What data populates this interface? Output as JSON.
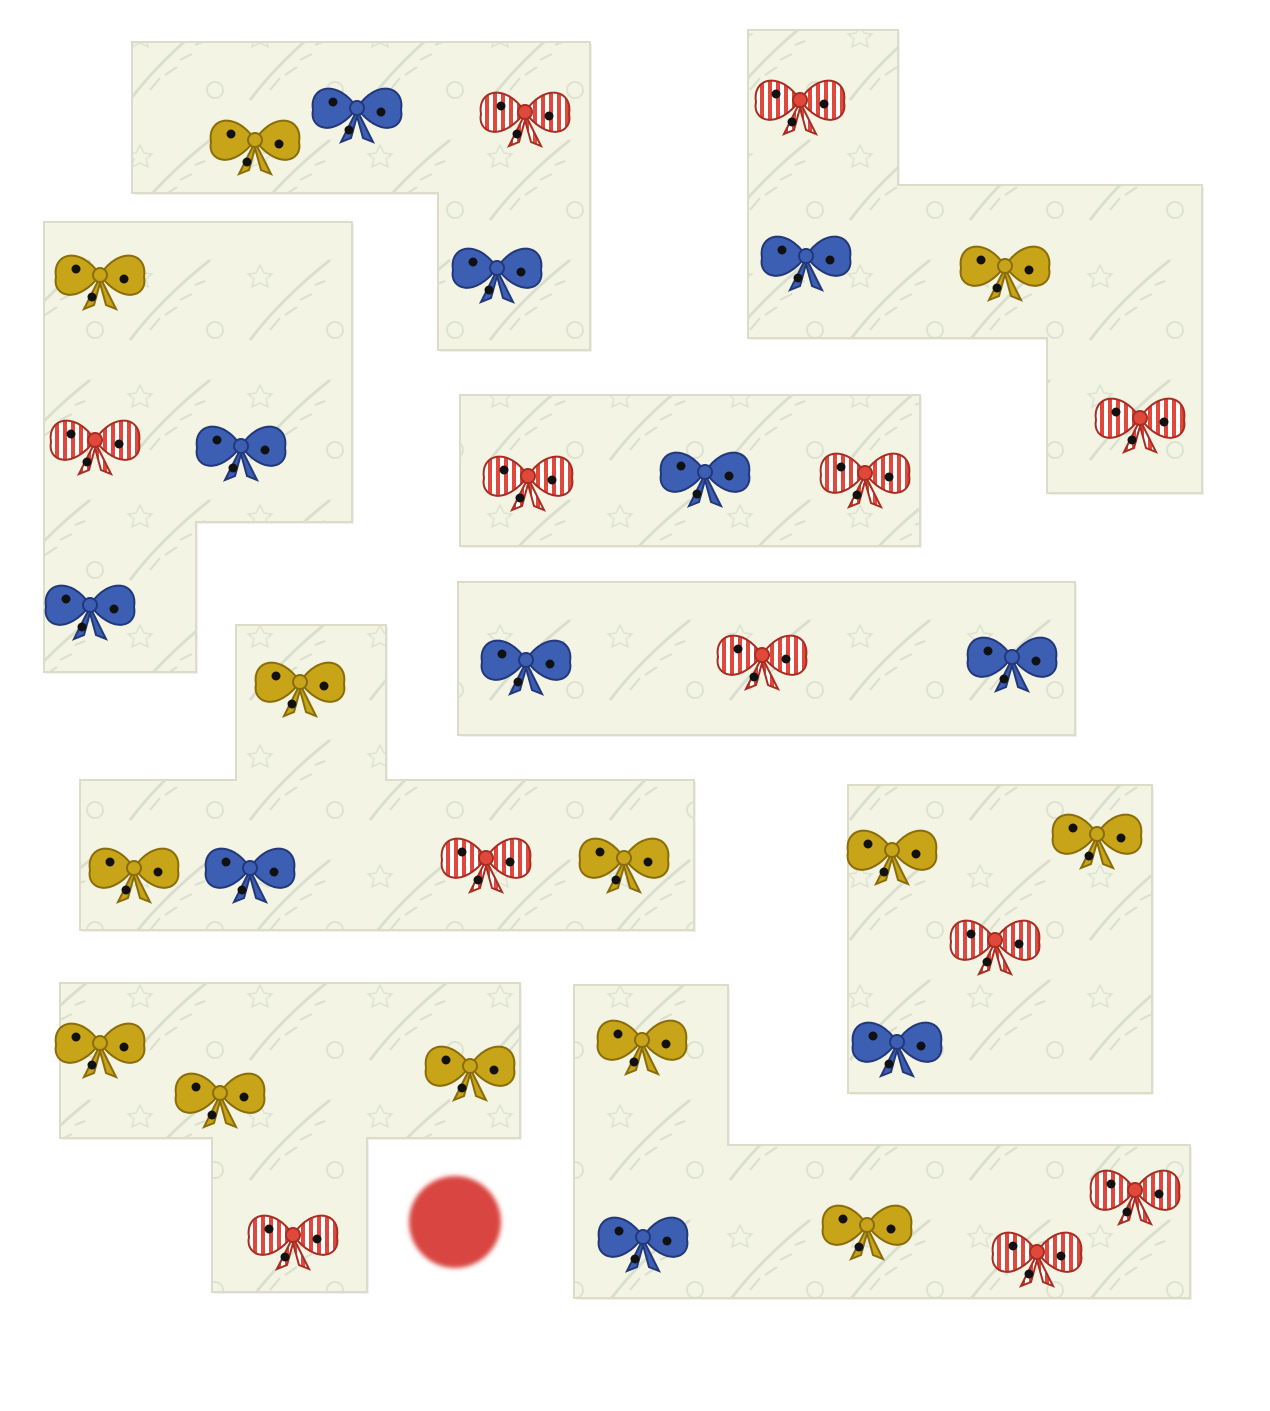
{
  "game": {
    "type": "polyomino-bow-puzzle",
    "background_color": "#ffffff",
    "card_color": "#f3f4e3",
    "marker": {
      "color": "#d94441",
      "kind": "red-dot"
    },
    "bow_colors": {
      "gold": "#c8a418",
      "blue": "#3c5fb4",
      "red": "#e0483c"
    },
    "tiles": [
      {
        "id": "tile-1",
        "bows": [
          "gold",
          "blue",
          "red",
          "blue"
        ]
      },
      {
        "id": "tile-2",
        "bows": [
          "red",
          "blue",
          "gold",
          "red"
        ]
      },
      {
        "id": "tile-3",
        "bows": [
          "gold",
          "red",
          "blue",
          "blue"
        ]
      },
      {
        "id": "tile-4",
        "bows": [
          "red",
          "blue",
          "red"
        ]
      },
      {
        "id": "tile-5",
        "bows": [
          "blue",
          "red",
          "blue"
        ]
      },
      {
        "id": "tile-6",
        "bows": [
          "gold",
          "gold",
          "blue",
          "red",
          "gold"
        ]
      },
      {
        "id": "tile-7",
        "bows": [
          "gold",
          "gold",
          "red",
          "blue"
        ]
      },
      {
        "id": "tile-8",
        "bows": [
          "gold",
          "gold",
          "gold",
          "red"
        ]
      },
      {
        "id": "tile-9",
        "bows": [
          "gold",
          "blue",
          "gold",
          "red",
          "red"
        ]
      }
    ]
  }
}
